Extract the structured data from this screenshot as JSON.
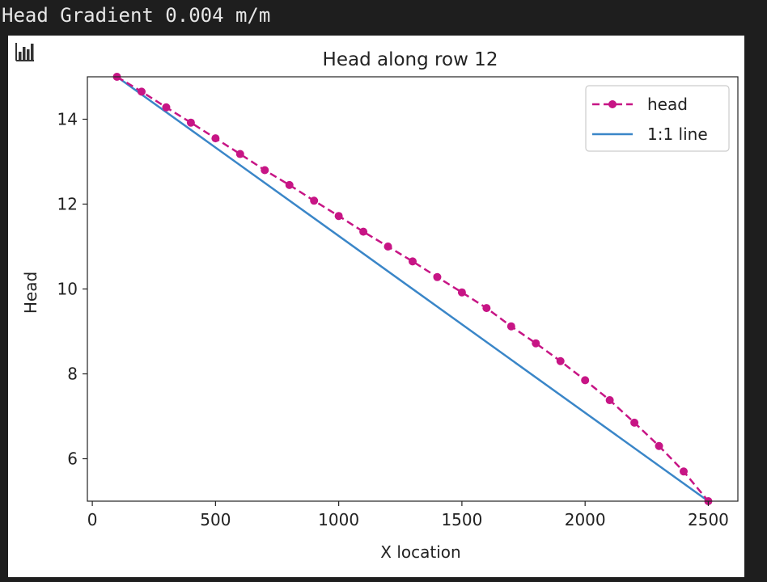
{
  "output": {
    "text": "Head Gradient 0.004 m/m"
  },
  "toolbar": {
    "icon": "bar-chart-icon"
  },
  "chart_data": {
    "type": "line",
    "title": "Head along row 12",
    "xlabel": "X location",
    "ylabel": "Head",
    "xlim": [
      -20,
      2620
    ],
    "ylim": [
      5.0,
      15.0
    ],
    "xticks": [
      0,
      500,
      1000,
      1500,
      2000,
      2500
    ],
    "xtick_labels": [
      "0",
      "500",
      "1000",
      "1500",
      "2000",
      "2500"
    ],
    "yticks": [
      6,
      8,
      10,
      12,
      14
    ],
    "ytick_labels": [
      "6",
      "8",
      "10",
      "12",
      "14"
    ],
    "grid": false,
    "legend_position": "top-right",
    "series": [
      {
        "name": "head",
        "style": "dashed-with-markers",
        "color": "#c71585",
        "x": [
          100,
          200,
          300,
          400,
          500,
          600,
          700,
          800,
          900,
          1000,
          1100,
          1200,
          1300,
          1400,
          1500,
          1600,
          1700,
          1800,
          1900,
          2000,
          2100,
          2200,
          2300,
          2400,
          2500
        ],
        "y": [
          15.0,
          14.65,
          14.28,
          13.92,
          13.55,
          13.18,
          12.8,
          12.45,
          12.08,
          11.72,
          11.35,
          11.0,
          10.65,
          10.28,
          9.92,
          9.55,
          9.12,
          8.72,
          8.3,
          7.85,
          7.38,
          6.85,
          6.3,
          5.7,
          5.0
        ]
      },
      {
        "name": "1:1 line",
        "style": "solid",
        "color": "#3a86c8",
        "x": [
          100,
          2500
        ],
        "y": [
          15.0,
          5.0
        ]
      }
    ]
  }
}
